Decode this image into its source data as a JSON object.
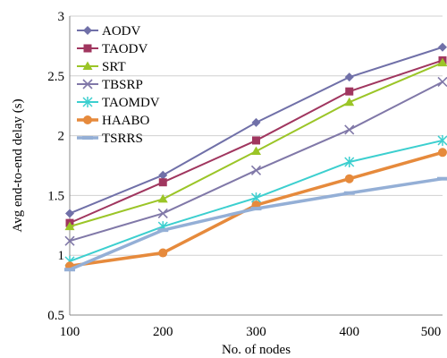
{
  "chart_data": {
    "type": "line",
    "xlabel": "No. of nodes",
    "ylabel": "Avg end-to-end delay (s)",
    "categories": [
      "100",
      "200",
      "300",
      "400",
      "500"
    ],
    "x": [
      100,
      200,
      300,
      400,
      500
    ],
    "ylim": [
      0.5,
      3
    ],
    "yticks": [
      "0.5",
      "1",
      "1.5",
      "2",
      "2.5",
      "3"
    ],
    "grid": "horizontal",
    "legend_position": "top-left",
    "series": [
      {
        "name": "AODV",
        "color": "#7070a8",
        "marker": "diamond",
        "values": [
          1.35,
          1.67,
          2.11,
          2.49,
          2.74
        ]
      },
      {
        "name": "TAODV",
        "color": "#a0365f",
        "marker": "square",
        "values": [
          1.27,
          1.61,
          1.96,
          2.37,
          2.63
        ]
      },
      {
        "name": "SRT",
        "color": "#9bc527",
        "marker": "triangle",
        "values": [
          1.24,
          1.47,
          1.87,
          2.28,
          2.61
        ]
      },
      {
        "name": "TBSRP",
        "color": "#8078a8",
        "marker": "x",
        "values": [
          1.12,
          1.35,
          1.71,
          2.05,
          2.45
        ]
      },
      {
        "name": "TAOMDV",
        "color": "#3ccfcf",
        "marker": "star",
        "values": [
          0.95,
          1.24,
          1.48,
          1.78,
          1.96
        ]
      },
      {
        "name": "HAABO",
        "color": "#e68a3c",
        "marker": "circle",
        "values": [
          0.91,
          1.02,
          1.42,
          1.64,
          1.86
        ]
      },
      {
        "name": "TSRRS",
        "color": "#94afd6",
        "marker": "dash",
        "values": [
          0.88,
          1.21,
          1.39,
          1.52,
          1.64
        ]
      }
    ]
  }
}
